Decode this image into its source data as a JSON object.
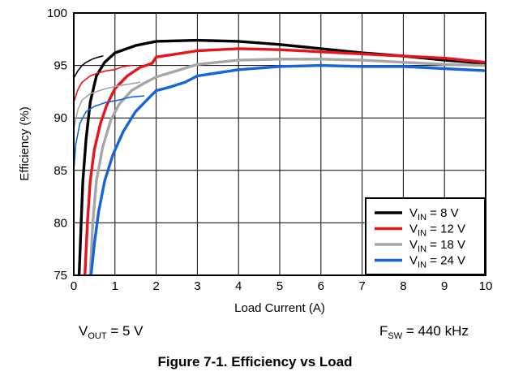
{
  "chart_data": {
    "type": "line",
    "xlabel": "Load Current (A)",
    "ylabel": "Efficiency (%)",
    "xlim": [
      0,
      10
    ],
    "ylim": [
      75,
      100
    ],
    "xticks": [
      0,
      1,
      2,
      3,
      4,
      5,
      6,
      7,
      8,
      9,
      10
    ],
    "yticks": [
      75,
      80,
      85,
      90,
      95,
      100
    ],
    "grid": true,
    "legend_position": "bottom-right",
    "series": [
      {
        "name": "V_IN = 8 V",
        "legend_main": "V",
        "legend_sub": "IN",
        "legend_rest": " = 8 V",
        "color": "#000000",
        "light_points": [
          [
            0,
            93.8
          ],
          [
            0.1,
            94.5
          ],
          [
            0.2,
            95.0
          ],
          [
            0.3,
            95.3
          ],
          [
            0.45,
            95.6
          ],
          [
            0.6,
            95.8
          ],
          [
            0.7,
            95.9
          ]
        ],
        "heavy_points": [
          [
            0.13,
            75
          ],
          [
            0.18,
            80
          ],
          [
            0.22,
            84
          ],
          [
            0.3,
            88
          ],
          [
            0.4,
            91.5
          ],
          [
            0.55,
            94
          ],
          [
            0.75,
            95.3
          ],
          [
            1.0,
            96.2
          ],
          [
            1.5,
            96.9
          ],
          [
            2.0,
            97.3
          ],
          [
            3.0,
            97.4
          ],
          [
            4.0,
            97.3
          ],
          [
            5.0,
            97.0
          ],
          [
            6.0,
            96.6
          ],
          [
            7.0,
            96.2
          ],
          [
            8.0,
            95.9
          ],
          [
            9.0,
            95.5
          ],
          [
            10.0,
            95.2
          ]
        ]
      },
      {
        "name": "V_IN = 12 V",
        "legend_main": "V",
        "legend_sub": "IN",
        "legend_rest": " = 12 V",
        "color": "#e8141c",
        "light_points": [
          [
            0,
            91.5
          ],
          [
            0.1,
            92.7
          ],
          [
            0.2,
            93.4
          ],
          [
            0.4,
            94.0
          ],
          [
            0.6,
            94.3
          ],
          [
            0.8,
            94.5
          ],
          [
            1.0,
            94.6
          ],
          [
            1.2,
            94.9
          ],
          [
            1.4,
            95.0
          ]
        ],
        "heavy_points": [
          [
            0.27,
            75
          ],
          [
            0.33,
            80
          ],
          [
            0.4,
            84
          ],
          [
            0.5,
            87
          ],
          [
            0.65,
            89.5
          ],
          [
            0.8,
            91.2
          ],
          [
            1.0,
            92.8
          ],
          [
            1.3,
            94.0
          ],
          [
            1.6,
            94.8
          ],
          [
            1.9,
            95.2
          ],
          [
            2.0,
            95.8
          ],
          [
            2.5,
            96.1
          ],
          [
            3.0,
            96.4
          ],
          [
            4.0,
            96.6
          ],
          [
            5.0,
            96.5
          ],
          [
            6.0,
            96.3
          ],
          [
            7.0,
            96.1
          ],
          [
            8.0,
            95.9
          ],
          [
            9.0,
            95.7
          ],
          [
            10.0,
            95.3
          ]
        ]
      },
      {
        "name": "V_IN = 18 V",
        "legend_main": "V",
        "legend_sub": "IN",
        "legend_rest": " = 18 V",
        "color": "#a6a6a6",
        "light_points": [
          [
            0,
            89.0
          ],
          [
            0.1,
            90.8
          ],
          [
            0.2,
            91.7
          ],
          [
            0.4,
            92.3
          ],
          [
            0.7,
            92.7
          ],
          [
            1.0,
            93.0
          ],
          [
            1.3,
            93.2
          ],
          [
            1.6,
            93.4
          ]
        ],
        "heavy_points": [
          [
            0.4,
            75
          ],
          [
            0.46,
            80
          ],
          [
            0.55,
            84
          ],
          [
            0.7,
            87.2
          ],
          [
            0.9,
            89.8
          ],
          [
            1.1,
            91.3
          ],
          [
            1.4,
            92.6
          ],
          [
            1.7,
            93.3
          ],
          [
            2.0,
            93.9
          ],
          [
            2.5,
            94.5
          ],
          [
            3.0,
            95.1
          ],
          [
            4.0,
            95.5
          ],
          [
            5.0,
            95.6
          ],
          [
            6.0,
            95.6
          ],
          [
            7.0,
            95.5
          ],
          [
            8.0,
            95.3
          ],
          [
            9.0,
            95.1
          ],
          [
            10.0,
            95.0
          ]
        ]
      },
      {
        "name": "V_IN = 24 V",
        "legend_main": "V",
        "legend_sub": "IN",
        "legend_rest": " = 24 V",
        "color": "#1565d8",
        "light_points": [
          [
            0,
            85.0
          ],
          [
            0.05,
            87.5
          ],
          [
            0.15,
            89.5
          ],
          [
            0.3,
            90.6
          ],
          [
            0.5,
            91.1
          ],
          [
            0.8,
            91.5
          ],
          [
            1.1,
            91.7
          ],
          [
            1.4,
            92.0
          ],
          [
            1.7,
            92.1
          ]
        ],
        "heavy_points": [
          [
            0.42,
            75
          ],
          [
            0.5,
            78
          ],
          [
            0.6,
            81
          ],
          [
            0.75,
            84
          ],
          [
            0.95,
            86.5
          ],
          [
            1.2,
            88.7
          ],
          [
            1.5,
            90.6
          ],
          [
            1.8,
            91.8
          ],
          [
            2.0,
            92.6
          ],
          [
            2.3,
            92.9
          ],
          [
            2.7,
            93.4
          ],
          [
            3.0,
            94.0
          ],
          [
            4.0,
            94.6
          ],
          [
            5.0,
            94.9
          ],
          [
            6.0,
            95.0
          ],
          [
            7.0,
            94.9
          ],
          [
            8.0,
            94.9
          ],
          [
            9.0,
            94.7
          ],
          [
            10.0,
            94.5
          ]
        ]
      }
    ]
  },
  "conditions": {
    "vout_main": "V",
    "vout_sub": "OUT",
    "vout_rest": " = 5 V",
    "fsw_main": "F",
    "fsw_sub": "SW",
    "fsw_rest": " = 440 kHz"
  },
  "caption": "Figure 7-1. Efficiency vs Load"
}
